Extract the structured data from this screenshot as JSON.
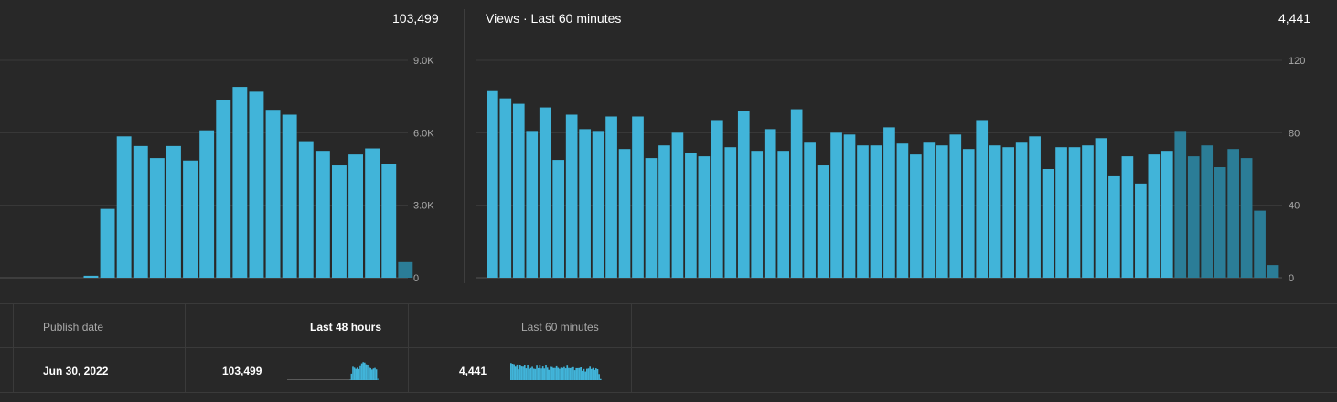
{
  "colors": {
    "bar": "#41b4d9",
    "bar_dim": "#2b7d97",
    "bg": "#282828",
    "grid": "#3a3a3a",
    "axis_text": "#aaaaaa"
  },
  "left_chart": {
    "total": "103,499",
    "y_ticks": [
      "9.0K",
      "6.0K",
      "3.0K",
      "0"
    ]
  },
  "right_chart": {
    "title": "Views · Last 60 minutes",
    "total": "4,441",
    "y_ticks": [
      "120",
      "80",
      "40",
      "0"
    ]
  },
  "table": {
    "headers": {
      "publish_date": "Publish date",
      "last_48": "Last 48 hours",
      "last_60": "Last 60 minutes"
    },
    "row": {
      "publish_date": "Jun 30, 2022",
      "last_48_value": "103,499",
      "last_60_value": "4,441"
    }
  },
  "chart_data": [
    {
      "type": "bar",
      "ylim": [
        0,
        9000
      ],
      "grid": true,
      "values": [
        0,
        0,
        0,
        0,
        0,
        80,
        2850,
        5850,
        5450,
        4950,
        5450,
        4850,
        6100,
        7350,
        7900,
        7700,
        6950,
        6750,
        5650,
        5250,
        4650,
        5100,
        5350,
        4700,
        650
      ],
      "dim_last": 1
    },
    {
      "type": "bar",
      "ylim": [
        0,
        120
      ],
      "grid": true,
      "values": [
        103,
        99,
        96,
        81,
        94,
        65,
        90,
        82,
        81,
        89,
        71,
        89,
        66,
        73,
        80,
        69,
        67,
        87,
        72,
        92,
        70,
        82,
        70,
        93,
        75,
        62,
        80,
        79,
        73,
        73,
        83,
        74,
        68,
        75,
        73,
        79,
        71,
        87,
        73,
        72,
        75,
        78,
        60,
        72,
        72,
        73,
        77,
        56,
        67,
        52,
        68,
        70,
        81,
        67,
        73,
        61,
        71,
        66,
        37,
        7
      ],
      "dim_from": 52
    }
  ]
}
